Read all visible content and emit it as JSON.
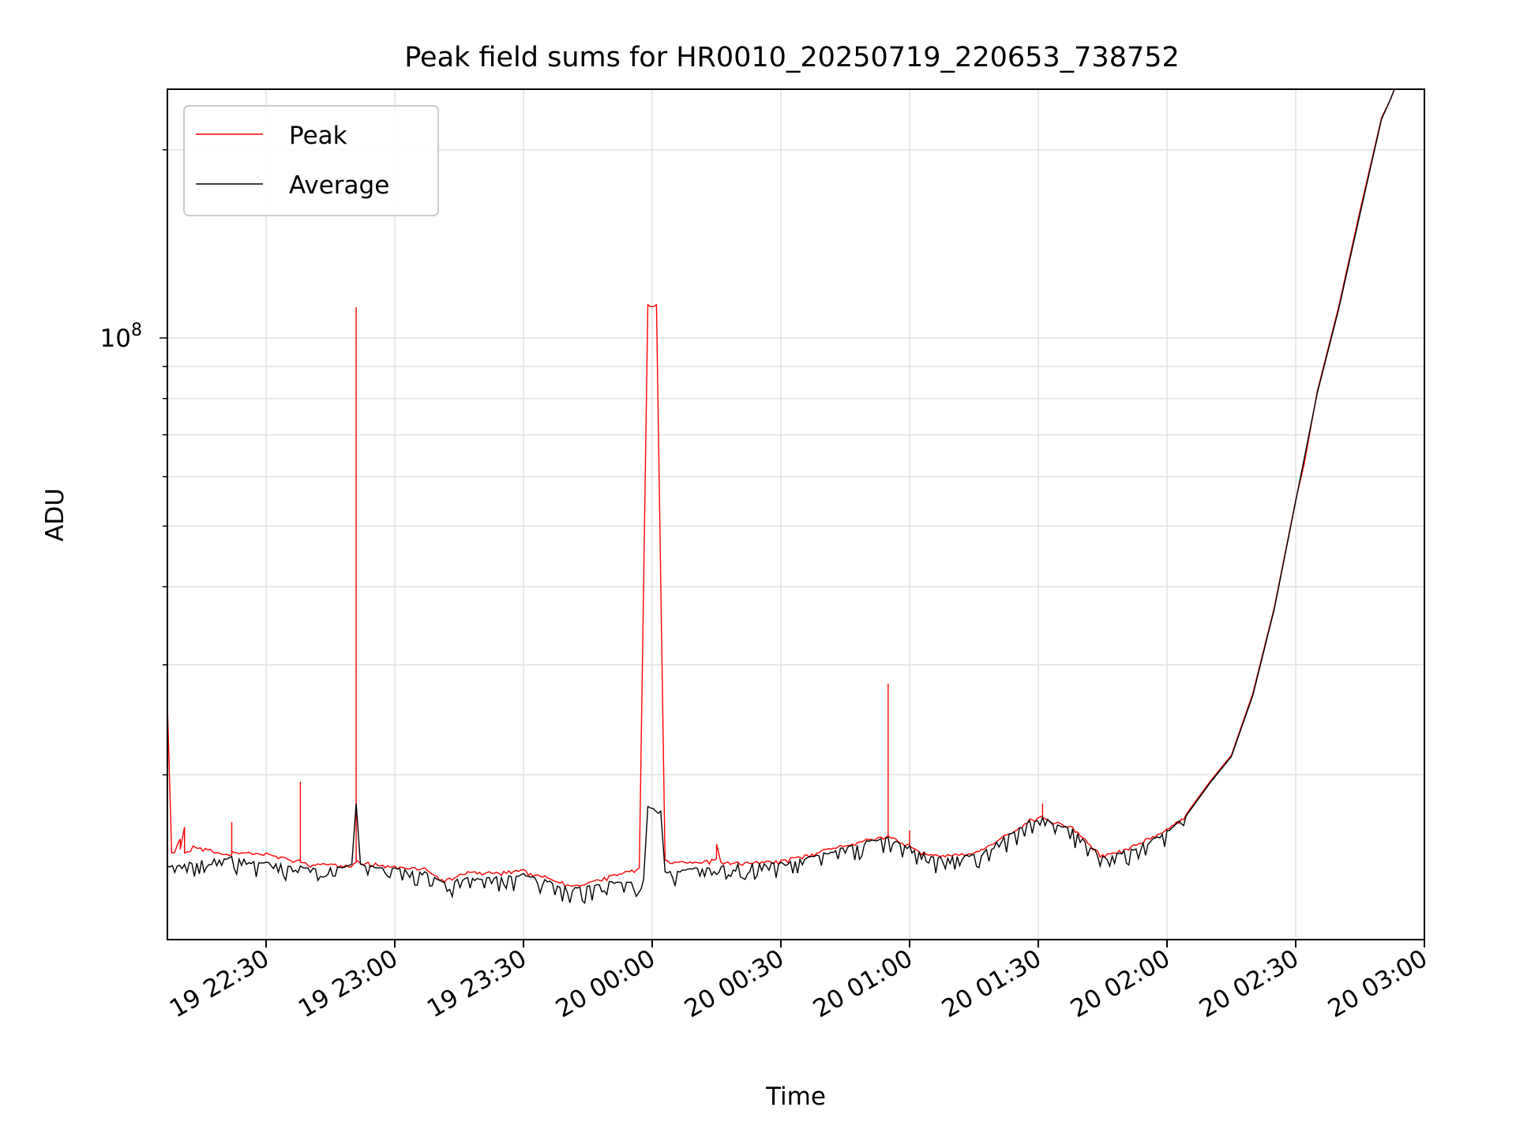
{
  "chart_data": {
    "type": "line",
    "title": "Peak field sums for HR0010_20250719_220653_738752",
    "xlabel": "Time",
    "ylabel": "ADU",
    "yscale": "log",
    "grid": true,
    "legend_position": "upper-left",
    "xlim": [
      "2025-07-19T22:07",
      "2025-07-20T03:00"
    ],
    "ylim": [
      10900000,
      250000000
    ],
    "x_ticks": [
      {
        "t": "2025-07-19T22:30",
        "label": "19 22:30"
      },
      {
        "t": "2025-07-19T23:00",
        "label": "19 23:00"
      },
      {
        "t": "2025-07-19T23:30",
        "label": "19 23:30"
      },
      {
        "t": "2025-07-20T00:00",
        "label": "20 00:00"
      },
      {
        "t": "2025-07-20T00:30",
        "label": "20 00:30"
      },
      {
        "t": "2025-07-20T01:00",
        "label": "20 01:00"
      },
      {
        "t": "2025-07-20T01:30",
        "label": "20 01:30"
      },
      {
        "t": "2025-07-20T02:00",
        "label": "20 02:00"
      },
      {
        "t": "2025-07-20T02:30",
        "label": "20 02:30"
      },
      {
        "t": "2025-07-20T03:00",
        "label": "20 03:00"
      }
    ],
    "y_ticks": [
      {
        "v": 100000000,
        "base": "10",
        "exp": "8"
      }
    ],
    "series": [
      {
        "name": "Peak",
        "color": "#ff0000",
        "points": [
          [
            "2025-07-19T22:07",
            112000000
          ],
          [
            "2025-07-19T22:07",
            26000000
          ],
          [
            "2025-07-19T22:08",
            15000000
          ],
          [
            "2025-07-19T22:10",
            15800000
          ],
          [
            "2025-07-19T22:10",
            15200000
          ],
          [
            "2025-07-19T22:11",
            16500000
          ],
          [
            "2025-07-19T22:11",
            15000000
          ],
          [
            "2025-07-19T22:13",
            15400000
          ],
          [
            "2025-07-19T22:17",
            15200000
          ],
          [
            "2025-07-19T22:22",
            14900000
          ],
          [
            "2025-07-19T22:22",
            16800000
          ],
          [
            "2025-07-19T22:22",
            15100000
          ],
          [
            "2025-07-19T22:30",
            15000000
          ],
          [
            "2025-07-19T22:38",
            14600000
          ],
          [
            "2025-07-19T22:38",
            19500000
          ],
          [
            "2025-07-19T22:38",
            14500000
          ],
          [
            "2025-07-19T22:45",
            14400000
          ],
          [
            "2025-07-19T22:51",
            14500000
          ],
          [
            "2025-07-19T22:51",
            112000000
          ],
          [
            "2025-07-19T22:51",
            14600000
          ],
          [
            "2025-07-19T23:00",
            14300000
          ],
          [
            "2025-07-19T23:07",
            14200000
          ],
          [
            "2025-07-19T23:11",
            13600000
          ],
          [
            "2025-07-19T23:17",
            14000000
          ],
          [
            "2025-07-19T23:22",
            14000000
          ],
          [
            "2025-07-19T23:30",
            14100000
          ],
          [
            "2025-07-19T23:35",
            13800000
          ],
          [
            "2025-07-19T23:42",
            13300000
          ],
          [
            "2025-07-19T23:50",
            13800000
          ],
          [
            "2025-07-19T23:57",
            14200000
          ],
          [
            "2025-07-19T23:59",
            113000000
          ],
          [
            "2025-07-20T00:01",
            113000000
          ],
          [
            "2025-07-20T00:03",
            14600000
          ],
          [
            "2025-07-20T00:10",
            14500000
          ],
          [
            "2025-07-20T00:15",
            14700000
          ],
          [
            "2025-07-20T00:15",
            15500000
          ],
          [
            "2025-07-20T00:16",
            14500000
          ],
          [
            "2025-07-20T00:30",
            14600000
          ],
          [
            "2025-07-20T00:40",
            15200000
          ],
          [
            "2025-07-20T00:50",
            15800000
          ],
          [
            "2025-07-20T00:55",
            16000000
          ],
          [
            "2025-07-20T00:55",
            28000000
          ],
          [
            "2025-07-20T00:55",
            16000000
          ],
          [
            "2025-07-20T01:00",
            15500000
          ],
          [
            "2025-07-20T01:00",
            16300000
          ],
          [
            "2025-07-20T01:00",
            15400000
          ],
          [
            "2025-07-20T01:05",
            14900000
          ],
          [
            "2025-07-20T01:15",
            15000000
          ],
          [
            "2025-07-20T01:22",
            16000000
          ],
          [
            "2025-07-20T01:28",
            17000000
          ],
          [
            "2025-07-20T01:31",
            17200000
          ],
          [
            "2025-07-20T01:31",
            18000000
          ],
          [
            "2025-07-20T01:31",
            17100000
          ],
          [
            "2025-07-20T01:38",
            16500000
          ],
          [
            "2025-07-20T01:45",
            14900000
          ],
          [
            "2025-07-20T01:50",
            15200000
          ],
          [
            "2025-07-20T02:00",
            16400000
          ],
          [
            "2025-07-20T02:05",
            17500000
          ],
          [
            "2025-07-20T02:10",
            19500000
          ],
          [
            "2025-07-20T02:15",
            21500000
          ],
          [
            "2025-07-20T02:20",
            27000000
          ],
          [
            "2025-07-20T02:25",
            37000000
          ],
          [
            "2025-07-20T02:30",
            55000000
          ],
          [
            "2025-07-20T02:32",
            63000000
          ],
          [
            "2025-07-20T02:35",
            82000000
          ],
          [
            "2025-07-20T02:40",
            112000000
          ],
          [
            "2025-07-20T02:45",
            160000000
          ],
          [
            "2025-07-20T02:50",
            225000000
          ],
          [
            "2025-07-20T02:52",
            240000000
          ],
          [
            "2025-07-20T02:53",
            250000000
          ]
        ]
      },
      {
        "name": "Average",
        "color": "#000000",
        "points": [
          [
            "2025-07-19T22:07",
            14300000
          ],
          [
            "2025-07-19T22:15",
            14600000
          ],
          [
            "2025-07-19T22:22",
            14800000
          ],
          [
            "2025-07-19T22:30",
            14500000
          ],
          [
            "2025-07-19T22:38",
            14300000
          ],
          [
            "2025-07-19T22:45",
            14200000
          ],
          [
            "2025-07-19T22:50",
            14400000
          ],
          [
            "2025-07-19T22:51",
            18000000
          ],
          [
            "2025-07-19T22:52",
            14400000
          ],
          [
            "2025-07-19T23:00",
            14200000
          ],
          [
            "2025-07-19T23:07",
            14000000
          ],
          [
            "2025-07-19T23:11",
            13500000
          ],
          [
            "2025-07-19T23:17",
            13700000
          ],
          [
            "2025-07-19T23:22",
            13700000
          ],
          [
            "2025-07-19T23:30",
            13900000
          ],
          [
            "2025-07-19T23:35",
            13600000
          ],
          [
            "2025-07-19T23:42",
            13200000
          ],
          [
            "2025-07-19T23:50",
            13500000
          ],
          [
            "2025-07-19T23:58",
            13600000
          ],
          [
            "2025-07-19T23:59",
            17800000
          ],
          [
            "2025-07-20T00:02",
            17500000
          ],
          [
            "2025-07-20T00:03",
            14000000
          ],
          [
            "2025-07-20T00:10",
            14200000
          ],
          [
            "2025-07-20T00:20",
            14400000
          ],
          [
            "2025-07-20T00:30",
            14500000
          ],
          [
            "2025-07-20T00:40",
            15000000
          ],
          [
            "2025-07-20T00:50",
            15700000
          ],
          [
            "2025-07-20T00:55",
            15900000
          ],
          [
            "2025-07-20T01:00",
            15400000
          ],
          [
            "2025-07-20T01:05",
            14800000
          ],
          [
            "2025-07-20T01:15",
            14900000
          ],
          [
            "2025-07-20T01:22",
            15900000
          ],
          [
            "2025-07-20T01:28",
            16900000
          ],
          [
            "2025-07-20T01:31",
            17100000
          ],
          [
            "2025-07-20T01:38",
            16400000
          ],
          [
            "2025-07-20T01:45",
            14800000
          ],
          [
            "2025-07-20T01:50",
            15100000
          ],
          [
            "2025-07-20T02:00",
            16300000
          ],
          [
            "2025-07-20T02:05",
            17400000
          ],
          [
            "2025-07-20T02:10",
            19400000
          ],
          [
            "2025-07-20T02:15",
            21400000
          ],
          [
            "2025-07-20T02:20",
            26800000
          ],
          [
            "2025-07-20T02:25",
            36800000
          ],
          [
            "2025-07-20T02:30",
            54800000
          ],
          [
            "2025-07-20T02:35",
            81500000
          ],
          [
            "2025-07-20T02:40",
            111000000
          ],
          [
            "2025-07-20T02:45",
            158000000
          ],
          [
            "2025-07-20T02:50",
            224000000
          ],
          [
            "2025-07-20T02:52",
            240000000
          ],
          [
            "2025-07-20T02:53",
            250000000
          ]
        ]
      }
    ]
  }
}
